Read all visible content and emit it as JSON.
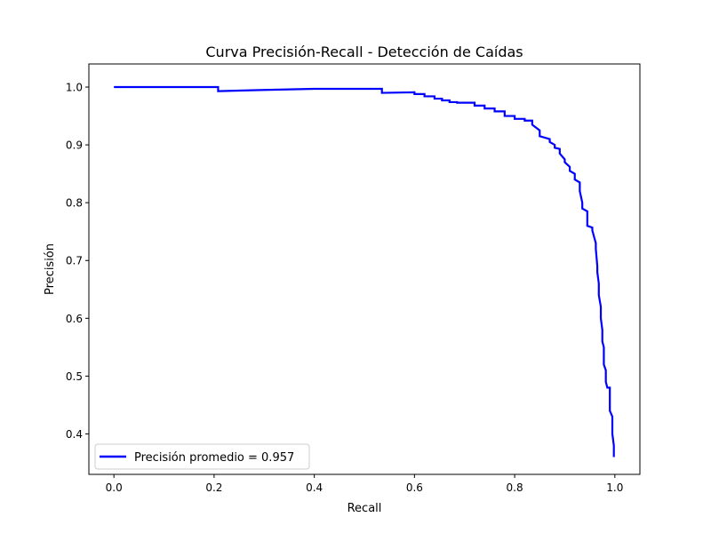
{
  "chart_data": {
    "type": "line",
    "title": "Curva Precisión-Recall - Detección de Caídas",
    "xlabel": "Recall",
    "ylabel": "Precisión",
    "xlim": [
      -0.05,
      1.05
    ],
    "ylim": [
      0.33,
      1.04
    ],
    "x_ticks": [
      0.0,
      0.2,
      0.4,
      0.6,
      0.8,
      1.0
    ],
    "x_tick_labels": [
      "0.0",
      "0.2",
      "0.4",
      "0.6",
      "0.8",
      "1.0"
    ],
    "y_ticks": [
      0.4,
      0.5,
      0.6,
      0.7,
      0.8,
      0.9,
      1.0
    ],
    "y_tick_labels": [
      "0.4",
      "0.5",
      "0.6",
      "0.7",
      "0.8",
      "0.9",
      "1.0"
    ],
    "grid": false,
    "legend_position": "lower-left",
    "series": [
      {
        "name": "Precisión promedio = 0.957",
        "color": "#0000ff",
        "x": [
          0.0,
          0.208,
          0.208,
          0.3,
          0.4,
          0.535,
          0.535,
          0.6,
          0.6,
          0.62,
          0.62,
          0.64,
          0.64,
          0.655,
          0.655,
          0.67,
          0.67,
          0.685,
          0.685,
          0.72,
          0.72,
          0.74,
          0.74,
          0.76,
          0.76,
          0.78,
          0.78,
          0.8,
          0.8,
          0.82,
          0.82,
          0.835,
          0.835,
          0.85,
          0.85,
          0.87,
          0.87,
          0.88,
          0.88,
          0.89,
          0.89,
          0.9,
          0.9,
          0.91,
          0.91,
          0.92,
          0.92,
          0.93,
          0.93,
          0.935,
          0.935,
          0.945,
          0.945,
          0.955,
          0.955,
          0.962,
          0.962,
          0.965,
          0.965,
          0.968,
          0.968,
          0.972,
          0.972,
          0.975,
          0.975,
          0.978,
          0.978,
          0.982,
          0.982,
          0.985,
          0.985,
          0.99,
          0.99,
          0.995,
          0.995,
          0.998,
          0.998,
          0.998
        ],
        "y": [
          1.0,
          1.0,
          0.993,
          0.995,
          0.997,
          0.997,
          0.99,
          0.991,
          0.988,
          0.988,
          0.984,
          0.984,
          0.98,
          0.98,
          0.977,
          0.977,
          0.974,
          0.974,
          0.973,
          0.973,
          0.968,
          0.968,
          0.963,
          0.963,
          0.958,
          0.958,
          0.95,
          0.95,
          0.945,
          0.945,
          0.942,
          0.942,
          0.935,
          0.925,
          0.915,
          0.91,
          0.905,
          0.9,
          0.895,
          0.893,
          0.885,
          0.875,
          0.87,
          0.862,
          0.855,
          0.85,
          0.84,
          0.835,
          0.82,
          0.8,
          0.79,
          0.785,
          0.76,
          0.757,
          0.752,
          0.73,
          0.72,
          0.69,
          0.68,
          0.66,
          0.64,
          0.62,
          0.6,
          0.58,
          0.56,
          0.55,
          0.52,
          0.51,
          0.49,
          0.48,
          0.48,
          0.48,
          0.44,
          0.43,
          0.4,
          0.38,
          0.36,
          0.36
        ]
      }
    ]
  }
}
